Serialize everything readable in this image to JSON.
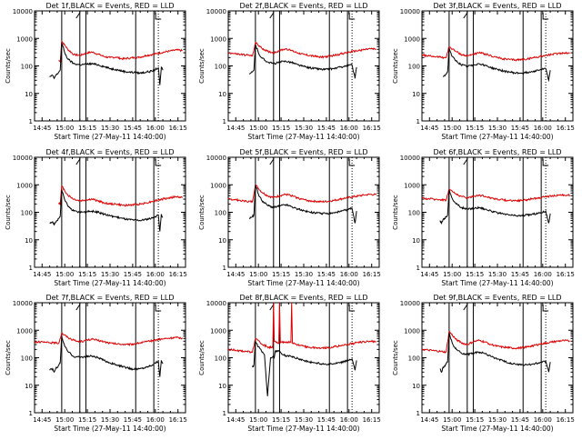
{
  "page": {
    "background": "#ffffff"
  },
  "common": {
    "ylabel": "Counts/sec",
    "xlabel": "Start Time (27-May-11 14:40:00)",
    "x_ticks": [
      "14:45",
      "15:00",
      "15:15",
      "15:30",
      "15:45",
      "16:00",
      "16:15"
    ],
    "y_ticks": [
      "1",
      "10",
      "100",
      "1000",
      "10000"
    ],
    "ylim": [
      1,
      10000
    ],
    "xlim_minutes_after_start": [
      0,
      100
    ],
    "colors": {
      "events": "#000000",
      "lld": "#dd0000"
    }
  },
  "chart_data": [
    {
      "type": "line",
      "title": "Det 1f,BLACK = Events, RED = LLD",
      "lines": [
        18,
        30,
        34,
        67,
        79,
        82
      ],
      "series": [
        {
          "color": "#dd0000",
          "x": [
            16,
            17,
            18,
            22,
            26,
            30,
            34,
            38,
            42,
            46,
            50,
            54,
            58,
            62,
            66,
            70,
            74,
            78,
            82,
            86,
            90,
            94,
            98
          ],
          "y": [
            160,
            140,
            800,
            400,
            260,
            240,
            290,
            320,
            270,
            220,
            200,
            210,
            180,
            190,
            200,
            210,
            240,
            260,
            290,
            320,
            350,
            380,
            360
          ]
        },
        {
          "color": "#000000",
          "x": [
            10,
            12,
            13,
            14,
            15,
            16,
            17,
            18,
            20,
            22,
            26,
            30,
            34,
            38,
            42,
            46,
            50,
            54,
            58,
            62,
            66,
            70,
            74,
            78,
            80,
            82,
            83,
            84,
            85
          ],
          "y": [
            40,
            45,
            35,
            45,
            50,
            60,
            70,
            700,
            300,
            180,
            120,
            110,
            115,
            120,
            110,
            95,
            80,
            75,
            65,
            60,
            58,
            55,
            60,
            65,
            75,
            85,
            20,
            90,
            70
          ]
        }
      ]
    },
    {
      "type": "line",
      "title": "Det 2f,BLACK = Events, RED = LLD",
      "lines": [
        18,
        30,
        34,
        67,
        79,
        82
      ],
      "series": [
        {
          "color": "#dd0000",
          "x": [
            0,
            4,
            8,
            12,
            16,
            18,
            22,
            26,
            30,
            34,
            38,
            42,
            46,
            50,
            54,
            58,
            62,
            66,
            70,
            74,
            78,
            82,
            86,
            90,
            94,
            98
          ],
          "y": [
            300,
            280,
            260,
            250,
            230,
            700,
            450,
            340,
            300,
            360,
            420,
            360,
            300,
            260,
            240,
            220,
            210,
            220,
            240,
            270,
            300,
            330,
            360,
            390,
            420,
            400
          ]
        },
        {
          "color": "#000000",
          "x": [
            14,
            15,
            16,
            17,
            18,
            20,
            22,
            26,
            30,
            34,
            38,
            42,
            46,
            50,
            54,
            58,
            62,
            66,
            70,
            74,
            78,
            82,
            84,
            85
          ],
          "y": [
            50,
            55,
            60,
            70,
            600,
            300,
            200,
            140,
            120,
            135,
            150,
            135,
            110,
            95,
            85,
            80,
            75,
            75,
            80,
            90,
            100,
            110,
            35,
            90
          ]
        }
      ]
    },
    {
      "type": "line",
      "title": "Det 3f,BLACK = Events, RED = LLD",
      "lines": [
        18,
        30,
        34,
        67,
        79,
        82
      ],
      "series": [
        {
          "color": "#dd0000",
          "x": [
            0,
            4,
            8,
            12,
            16,
            18,
            22,
            26,
            30,
            34,
            38,
            42,
            46,
            50,
            54,
            58,
            62,
            66,
            70,
            74,
            78,
            82,
            86,
            90,
            94,
            98
          ],
          "y": [
            250,
            230,
            220,
            210,
            200,
            500,
            350,
            260,
            230,
            270,
            300,
            270,
            230,
            200,
            180,
            170,
            165,
            170,
            180,
            200,
            220,
            240,
            260,
            280,
            300,
            290
          ]
        },
        {
          "color": "#000000",
          "x": [
            14,
            15,
            16,
            17,
            18,
            20,
            22,
            26,
            30,
            34,
            38,
            42,
            46,
            50,
            54,
            58,
            62,
            66,
            70,
            74,
            78,
            82,
            84,
            85
          ],
          "y": [
            40,
            45,
            50,
            60,
            450,
            220,
            160,
            110,
            95,
            110,
            120,
            105,
            85,
            75,
            65,
            60,
            55,
            55,
            58,
            65,
            72,
            80,
            30,
            70
          ]
        }
      ]
    },
    {
      "type": "line",
      "title": "Det 4f,BLACK = Events, RED = LLD",
      "lines": [
        18,
        30,
        34,
        67,
        79,
        82
      ],
      "series": [
        {
          "color": "#dd0000",
          "x": [
            16,
            17,
            18,
            22,
            26,
            30,
            34,
            38,
            42,
            46,
            50,
            54,
            58,
            62,
            66,
            70,
            74,
            78,
            82,
            86,
            90,
            94,
            98
          ],
          "y": [
            220,
            200,
            900,
            420,
            300,
            260,
            280,
            300,
            260,
            220,
            200,
            200,
            180,
            180,
            190,
            200,
            220,
            250,
            280,
            310,
            340,
            370,
            340
          ]
        },
        {
          "color": "#000000",
          "x": [
            10,
            12,
            13,
            14,
            15,
            16,
            17,
            18,
            20,
            22,
            26,
            30,
            34,
            38,
            42,
            46,
            50,
            54,
            58,
            62,
            66,
            70,
            74,
            78,
            80,
            82,
            83,
            84,
            85
          ],
          "y": [
            40,
            45,
            35,
            45,
            50,
            60,
            70,
            650,
            280,
            170,
            110,
            100,
            105,
            110,
            100,
            85,
            75,
            68,
            60,
            55,
            52,
            50,
            55,
            62,
            70,
            80,
            20,
            85,
            65
          ]
        }
      ]
    },
    {
      "type": "line",
      "title": "Det 5f,BLACK = Events, RED = LLD",
      "lines": [
        18,
        30,
        34,
        67,
        79,
        82
      ],
      "series": [
        {
          "color": "#dd0000",
          "x": [
            0,
            4,
            8,
            12,
            16,
            18,
            22,
            26,
            30,
            34,
            38,
            42,
            46,
            50,
            54,
            58,
            62,
            66,
            70,
            74,
            78,
            82,
            86,
            90,
            94,
            98
          ],
          "y": [
            300,
            290,
            270,
            250,
            240,
            1000,
            550,
            400,
            340,
            400,
            450,
            400,
            330,
            290,
            260,
            250,
            240,
            250,
            270,
            300,
            330,
            360,
            390,
            420,
            450,
            430
          ]
        },
        {
          "color": "#000000",
          "x": [
            14,
            15,
            16,
            17,
            18,
            20,
            22,
            26,
            30,
            34,
            38,
            42,
            46,
            50,
            54,
            58,
            62,
            66,
            70,
            74,
            78,
            82,
            84,
            85
          ],
          "y": [
            60,
            65,
            70,
            80,
            1000,
            450,
            280,
            180,
            150,
            170,
            190,
            160,
            130,
            115,
            100,
            95,
            90,
            90,
            95,
            105,
            120,
            140,
            40,
            110
          ]
        }
      ]
    },
    {
      "type": "line",
      "title": "Det 6f,BLACK = Events, RED = LLD",
      "lines": [
        18,
        30,
        34,
        67,
        79,
        82
      ],
      "series": [
        {
          "color": "#dd0000",
          "x": [
            0,
            4,
            8,
            12,
            16,
            18,
            22,
            26,
            30,
            34,
            38,
            42,
            46,
            50,
            54,
            58,
            62,
            66,
            70,
            74,
            78,
            82,
            86,
            90,
            94,
            98
          ],
          "y": [
            320,
            310,
            300,
            290,
            280,
            700,
            480,
            380,
            330,
            380,
            420,
            380,
            330,
            300,
            280,
            270,
            265,
            270,
            290,
            310,
            340,
            370,
            390,
            410,
            430,
            420
          ]
        },
        {
          "color": "#000000",
          "x": [
            12,
            13,
            14,
            15,
            16,
            17,
            18,
            20,
            22,
            26,
            30,
            34,
            38,
            42,
            46,
            50,
            54,
            58,
            62,
            66,
            70,
            74,
            78,
            82,
            84,
            85
          ],
          "y": [
            50,
            40,
            55,
            60,
            70,
            80,
            650,
            320,
            220,
            150,
            130,
            140,
            150,
            130,
            110,
            95,
            85,
            80,
            75,
            75,
            80,
            85,
            95,
            110,
            40,
            90
          ]
        }
      ]
    },
    {
      "type": "line",
      "title": "Det 7f,BLACK = Events, RED = LLD",
      "lines": [
        18,
        30,
        34,
        67,
        79,
        82
      ],
      "series": [
        {
          "color": "#dd0000",
          "x": [
            0,
            4,
            8,
            12,
            16,
            18,
            22,
            26,
            30,
            34,
            38,
            42,
            46,
            50,
            54,
            58,
            62,
            66,
            70,
            74,
            78,
            82,
            86,
            90,
            94,
            98
          ],
          "y": [
            380,
            370,
            360,
            350,
            340,
            800,
            550,
            430,
            380,
            430,
            470,
            430,
            380,
            340,
            320,
            310,
            300,
            320,
            350,
            380,
            420,
            460,
            490,
            520,
            540,
            520
          ]
        },
        {
          "color": "#000000",
          "x": [
            10,
            12,
            13,
            14,
            15,
            16,
            17,
            18,
            20,
            22,
            26,
            30,
            34,
            38,
            42,
            46,
            50,
            54,
            58,
            62,
            66,
            70,
            74,
            78,
            80,
            82,
            83,
            84,
            85
          ],
          "y": [
            35,
            40,
            30,
            40,
            45,
            55,
            65,
            600,
            260,
            170,
            110,
            105,
            110,
            115,
            100,
            80,
            65,
            55,
            48,
            42,
            38,
            40,
            45,
            55,
            65,
            75,
            20,
            80,
            60
          ]
        }
      ]
    },
    {
      "type": "line",
      "title": "Det 8f,BLACK = Events, RED = LLD",
      "lines": [
        18,
        30,
        34,
        67,
        79,
        82
      ],
      "series": [
        {
          "color": "#dd0000",
          "x": [
            0,
            4,
            8,
            12,
            16,
            18,
            22,
            26,
            29.5,
            30,
            30.5,
            32,
            33.5,
            34,
            34.5,
            38,
            41.5,
            42,
            42.5,
            46,
            50,
            54,
            58,
            62,
            66,
            70,
            74,
            78,
            82,
            86,
            90,
            94,
            98
          ],
          "y": [
            200,
            190,
            180,
            170,
            160,
            500,
            320,
            250,
            230,
            10000,
            400,
            350,
            330,
            10000,
            350,
            380,
            360,
            10000,
            340,
            300,
            260,
            240,
            230,
            225,
            230,
            250,
            270,
            300,
            330,
            360,
            380,
            400,
            380
          ]
        },
        {
          "color": "#000000",
          "x": [
            16,
            17,
            18,
            20,
            22,
            24,
            26,
            28,
            30,
            30.5,
            31,
            32,
            34,
            36,
            38,
            42,
            46,
            50,
            54,
            58,
            62,
            66,
            70,
            74,
            78,
            82,
            84,
            85
          ],
          "y": [
            45,
            55,
            400,
            250,
            180,
            130,
            4,
            100,
            110,
            100,
            160,
            180,
            170,
            130,
            120,
            110,
            95,
            80,
            70,
            65,
            60,
            58,
            60,
            65,
            75,
            90,
            35,
            80
          ]
        }
      ]
    },
    {
      "type": "line",
      "title": "Det 9f,BLACK = Events, RED = LLD",
      "lines": [
        18,
        30,
        34,
        67,
        79,
        82
      ],
      "series": [
        {
          "color": "#dd0000",
          "x": [
            0,
            4,
            8,
            12,
            16,
            18,
            22,
            26,
            30,
            34,
            38,
            42,
            46,
            50,
            54,
            58,
            62,
            66,
            70,
            74,
            78,
            82,
            86,
            90,
            94,
            98
          ],
          "y": [
            200,
            190,
            180,
            170,
            160,
            900,
            500,
            350,
            300,
            380,
            430,
            370,
            300,
            260,
            240,
            230,
            220,
            230,
            250,
            280,
            310,
            340,
            370,
            400,
            420,
            400
          ]
        },
        {
          "color": "#000000",
          "x": [
            12,
            13,
            14,
            15,
            16,
            17,
            18,
            20,
            22,
            26,
            30,
            34,
            38,
            42,
            46,
            50,
            54,
            58,
            62,
            66,
            70,
            74,
            78,
            82,
            84,
            85
          ],
          "y": [
            40,
            30,
            45,
            50,
            60,
            70,
            800,
            350,
            220,
            150,
            130,
            150,
            160,
            140,
            110,
            90,
            75,
            65,
            58,
            55,
            55,
            60,
            65,
            75,
            30,
            70
          ]
        }
      ]
    }
  ]
}
